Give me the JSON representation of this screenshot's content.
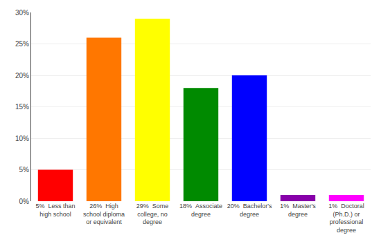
{
  "chart_data": {
    "type": "bar",
    "categories": [
      "5%  Less than\nhigh school",
      "26%  High\nschool diploma\nor equivalent",
      "29%  Some\ncollege, no\ndegree",
      "18%  Associate\ndegree",
      "20%  Bachelor's\ndegree",
      "1%  Master's\ndegree",
      "1%  Doctoral\n(Ph.D.) or\nprofessional\ndegree"
    ],
    "values": [
      5,
      26,
      29,
      18,
      20,
      1,
      1
    ],
    "colors": [
      "#FF0000",
      "#FF7700",
      "#FFFF00",
      "#008A00",
      "#0000FF",
      "#8800AA",
      "#FF00FF"
    ],
    "ylim": [
      0,
      30
    ],
    "yticks": [
      {
        "value": 0,
        "label": "0%"
      },
      {
        "value": 5,
        "label": "5%"
      },
      {
        "value": 10,
        "label": "10%"
      },
      {
        "value": 15,
        "label": "15%"
      },
      {
        "value": 20,
        "label": "20%"
      },
      {
        "value": 25,
        "label": "25%"
      },
      {
        "value": 30,
        "label": "30%"
      }
    ],
    "grid": true
  }
}
